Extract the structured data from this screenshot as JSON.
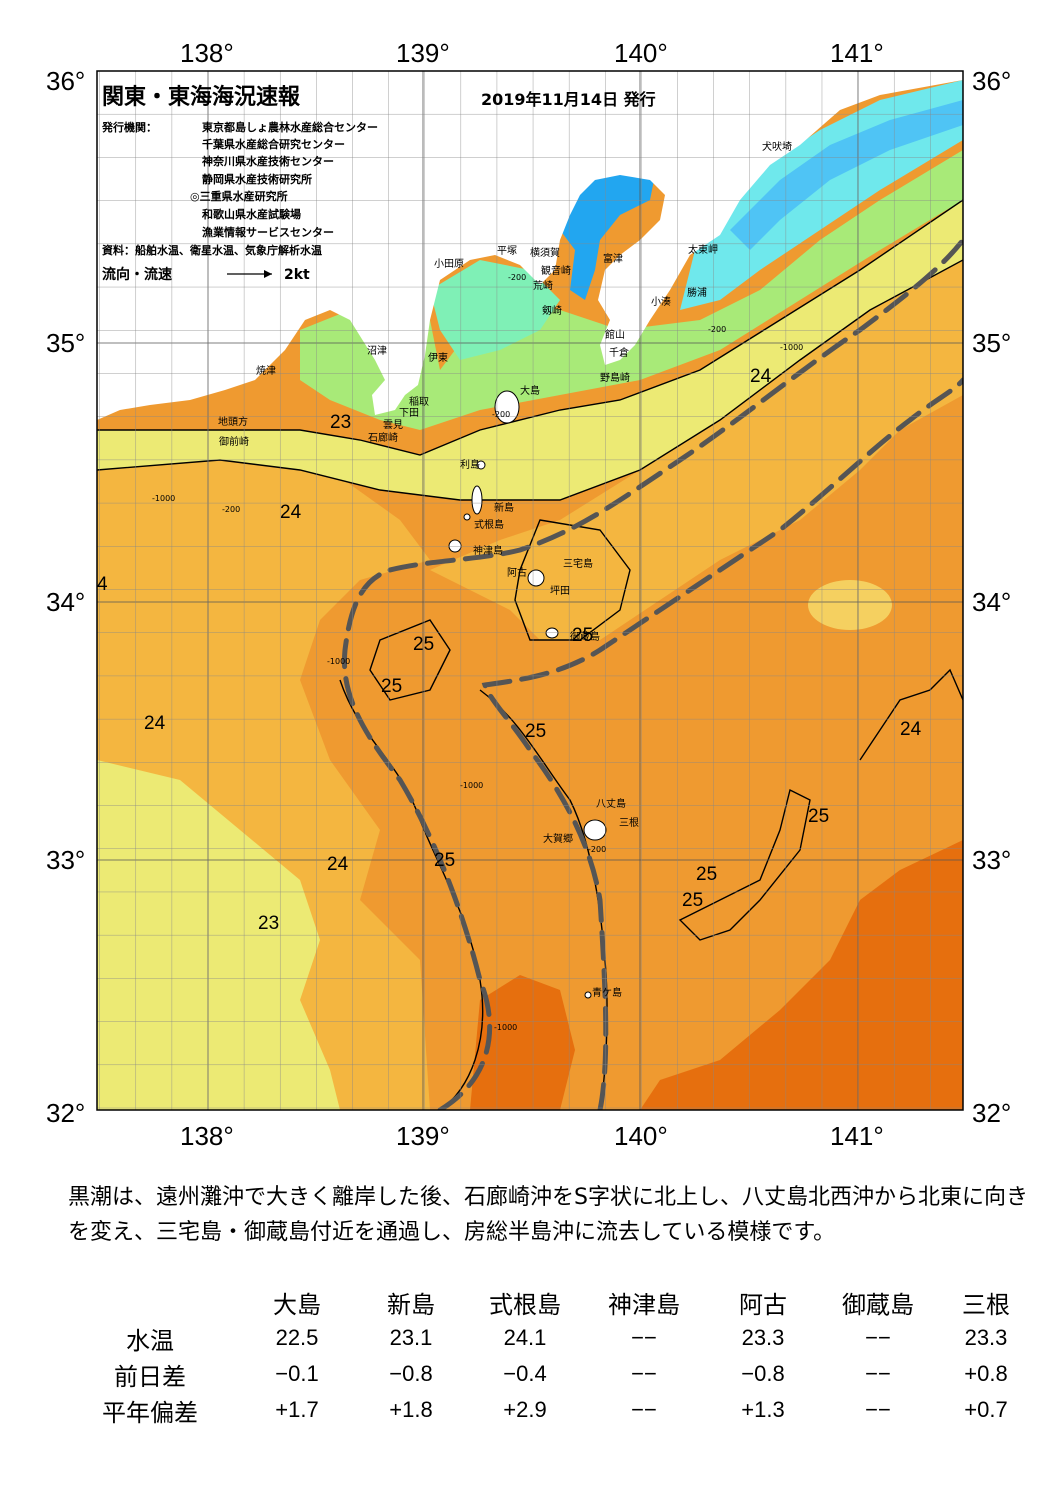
{
  "map": {
    "title": "関東・東海海況速報",
    "issue_date": "2019年11月14日 発行",
    "issuers_label": "発行機関：",
    "issuers": [
      "東京都島しょ農林水産総合センター",
      "千葉県水産総合研究センター",
      "神奈川県水産技術センター",
      "静岡県水産技術研究所",
      "◎三重県水産研究所",
      "和歌山県水産試験場",
      "漁業情報サービスセンター"
    ],
    "source": "資料：船舶水温、衛星水温、気象庁解析水温",
    "legend_label": "流向・流速",
    "legend_value": "2kt",
    "lon_labels": [
      "138°",
      "139°",
      "140°",
      "141°"
    ],
    "lat_labels": [
      "36°",
      "35°",
      "34°",
      "33°",
      "32°"
    ],
    "place_names": {
      "inubosaki": "犬吠埼",
      "taitomisaki": "太東岬",
      "katsuura": "勝浦",
      "kominato": "小湊",
      "futtsu": "富津",
      "tateyama": "館山",
      "chikura": "千倉",
      "nojimazaki": "野島崎",
      "kannonzaki": "観音崎",
      "tsurugisaki": "剱崎",
      "arasaki": "荒崎",
      "hiratsuka": "平塚",
      "yokosuka": "横須賀",
      "odawara": "小田原",
      "numazu": "沼津",
      "ito": "伊東",
      "inatori": "稲取",
      "shimoda": "下田",
      "mera": "雲見",
      "irozaki": "石廊崎",
      "yaizu": "焼津",
      "jitokata": "地頭方",
      "omaezaki": "御前崎",
      "oshima": "大島",
      "toshima": "利島",
      "niijima": "新島",
      "shikinejima": "式根島",
      "kozushima": "神津島",
      "miyakejima": "三宅島",
      "ako": "阿古",
      "tsubota": "坪田",
      "mikurajima": "御蔵島",
      "hachijojima": "八丈島",
      "mitsune": "三根",
      "okago": "大賀郷",
      "aogashima": "青ケ島"
    },
    "isotherm_labels": [
      "23",
      "23",
      "24",
      "24",
      "24",
      "24",
      "4",
      "25",
      "25",
      "25",
      "25",
      "25",
      "25",
      "25",
      "25",
      "24",
      "23"
    ],
    "depth_labels": [
      "-200",
      "-1000"
    ]
  },
  "commentary": "黒潮は、遠州灘沖で大きく離岸した後、石廊崎沖をS字状に北上し、八丈島北西沖から北東に向きを変え、三宅島・御蔵島付近を通過し、房総半島沖に流去している模様です。",
  "table": {
    "columns": [
      "大島",
      "新島",
      "式根島",
      "神津島",
      "阿古",
      "御蔵島",
      "三根"
    ],
    "rows": [
      {
        "label": "水温",
        "values": [
          "22.5",
          "23.1",
          "24.1",
          "−−",
          "23.3",
          "−−",
          "23.3"
        ]
      },
      {
        "label": "前日差",
        "values": [
          "−0.1",
          "−0.8",
          "−0.4",
          "−−",
          "−0.8",
          "−−",
          "+0.8"
        ]
      },
      {
        "label": "平年偏差",
        "values": [
          "+1.7",
          "+1.8",
          "+2.9",
          "−−",
          "+1.3",
          "−−",
          "+0.7"
        ]
      }
    ]
  },
  "colors": {
    "land": "#ffffff",
    "sea_18": "#22a6f0",
    "sea_19": "#4fc4f5",
    "sea_20": "#6fe8ec",
    "sea_21": "#7ff0b6",
    "sea_22": "#a8ea78",
    "sea_23": "#ecea74",
    "sea_23b": "#f5d060",
    "sea_24": "#f4b640",
    "sea_25": "#ef9a30",
    "sea_26": "#e66f0e",
    "kuroshio_axis": "#555555"
  }
}
